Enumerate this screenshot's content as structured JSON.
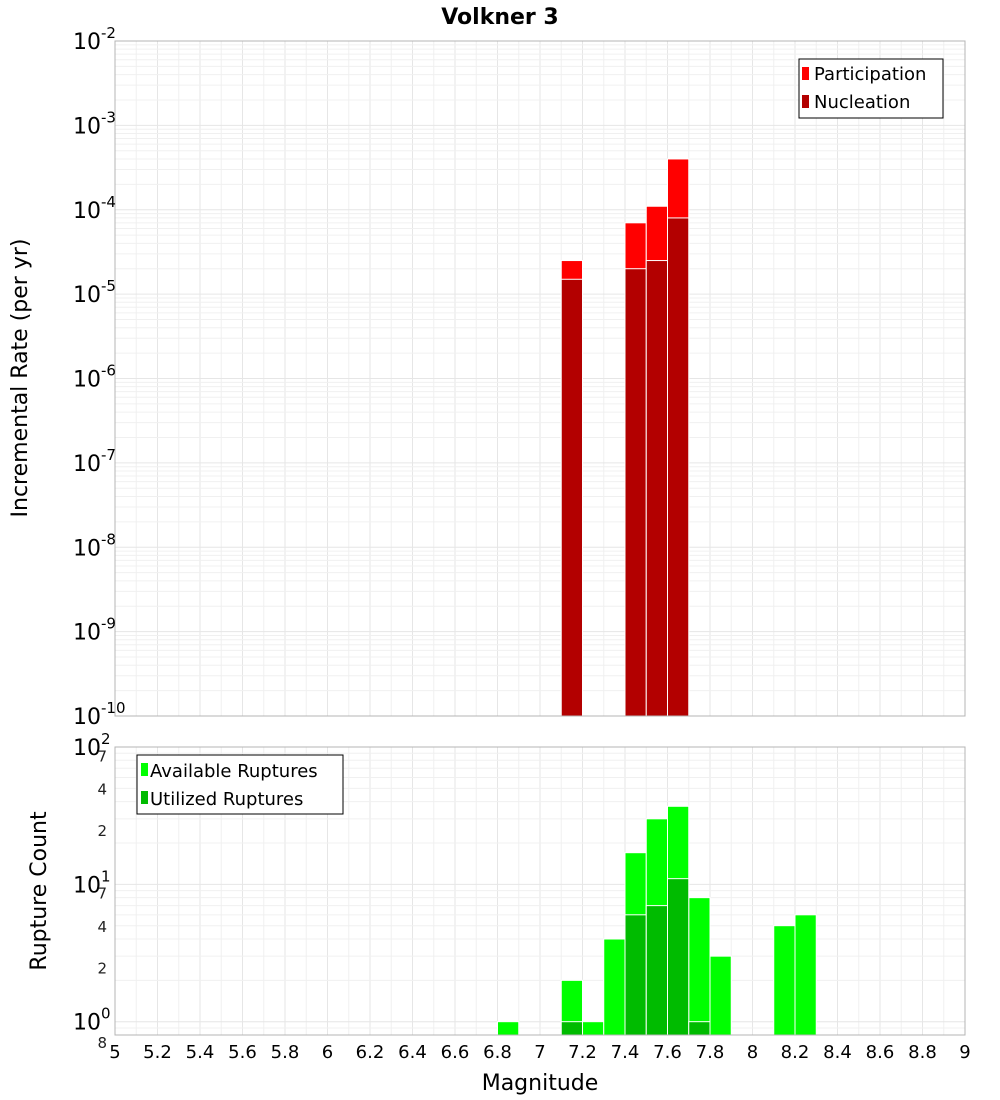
{
  "chart_data": [
    {
      "id": "rate",
      "type": "bar",
      "title": "Volkner 3",
      "xlabel": "",
      "ylabel": "Incremental Rate (per yr)",
      "yscale": "log",
      "ylim": [
        1e-10,
        0.01
      ],
      "xlim": [
        5,
        9
      ],
      "bin_width": 0.1,
      "grid": true,
      "legend_position": "top-right",
      "yticks": [
        {
          "base": "10",
          "exp": "-2",
          "value": 0.01
        },
        {
          "base": "10",
          "exp": "-3",
          "value": 0.001
        },
        {
          "base": "10",
          "exp": "-4",
          "value": 0.0001
        },
        {
          "base": "10",
          "exp": "-5",
          "value": 1e-05
        },
        {
          "base": "10",
          "exp": "-6",
          "value": 1e-06
        },
        {
          "base": "10",
          "exp": "-7",
          "value": 1e-07
        },
        {
          "base": "10",
          "exp": "-8",
          "value": 1e-08
        },
        {
          "base": "10",
          "exp": "-9",
          "value": 1e-09
        },
        {
          "base": "10",
          "exp": "-10",
          "value": 1e-10
        }
      ],
      "series": [
        {
          "name": "Participation",
          "color": "#ff0000",
          "x": [
            7.15,
            7.45,
            7.55,
            7.65
          ],
          "values": [
            2.5e-05,
            7e-05,
            0.00011,
            0.0004
          ]
        },
        {
          "name": "Nucleation",
          "color": "#b30000",
          "x": [
            7.15,
            7.45,
            7.55,
            7.65
          ],
          "values": [
            1.5e-05,
            2e-05,
            2.5e-05,
            8e-05
          ]
        }
      ]
    },
    {
      "id": "count",
      "type": "bar",
      "title": "",
      "xlabel": "Magnitude",
      "ylabel": "Rupture Count",
      "yscale": "log",
      "ylim": [
        0.8,
        100
      ],
      "xlim": [
        5,
        9
      ],
      "bin_width": 0.1,
      "grid": true,
      "legend_position": "top-left",
      "xticks": [
        "5",
        "5.2",
        "5.4",
        "5.6",
        "5.8",
        "6",
        "6.2",
        "6.4",
        "6.6",
        "6.8",
        "7",
        "7.2",
        "7.4",
        "7.6",
        "7.8",
        "8",
        "8.2",
        "8.4",
        "8.6",
        "8.8",
        "9"
      ],
      "yticks": [
        {
          "base": "10",
          "exp": "2",
          "value": 100
        },
        {
          "base": "10",
          "exp": "1",
          "value": 10
        },
        {
          "base": "10",
          "exp": "0",
          "value": 1
        }
      ],
      "minor_ticks": [
        {
          "label": "7",
          "value": 70
        },
        {
          "label": "4",
          "value": 40
        },
        {
          "label": "2",
          "value": 20
        },
        {
          "label": "7",
          "value": 7
        },
        {
          "label": "4",
          "value": 4
        },
        {
          "label": "2",
          "value": 2
        },
        {
          "label": "8",
          "value": 0.8
        }
      ],
      "series": [
        {
          "name": "Available Ruptures",
          "color": "#00ff00",
          "x": [
            6.85,
            7.15,
            7.25,
            7.35,
            7.45,
            7.55,
            7.65,
            7.75,
            7.85,
            8.15,
            8.25
          ],
          "values": [
            1,
            2,
            1,
            4,
            17,
            30,
            37,
            8,
            3,
            5,
            6
          ]
        },
        {
          "name": "Utilized Ruptures",
          "color": "#00bb00",
          "x": [
            7.15,
            7.45,
            7.55,
            7.65,
            7.75
          ],
          "values": [
            1,
            6,
            7,
            11,
            1
          ]
        }
      ]
    }
  ]
}
